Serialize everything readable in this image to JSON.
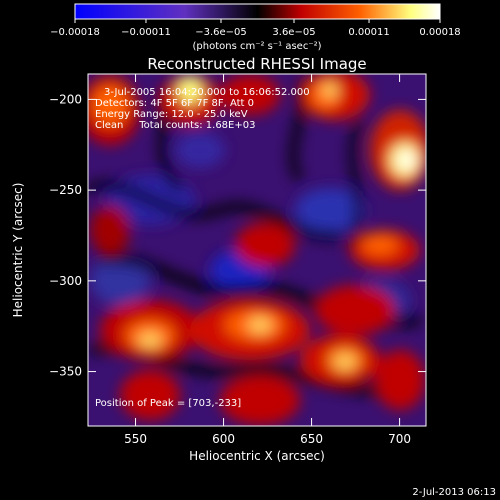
{
  "chart_data": {
    "type": "heatmap",
    "title": "Reconstructed RHESSI Image",
    "xlabel": "Heliocentric X (arcsec)",
    "ylabel": "Heliocentric Y (arcsec)",
    "xlim": [
      523,
      715
    ],
    "ylim": [
      -380,
      -186
    ],
    "xticks": [
      550,
      600,
      650,
      700
    ],
    "yticks": [
      -200,
      -250,
      -300,
      -350
    ],
    "xtick_labels": [
      "550",
      "600",
      "650",
      "700"
    ],
    "ytick_labels": [
      "−200",
      "−250",
      "−300",
      "−350"
    ],
    "colorbar": {
      "range": [
        -0.00018,
        0.00018
      ],
      "ticks": [
        -0.00018,
        -0.00011,
        -3.6e-05,
        3.6e-05,
        0.00011,
        0.00018
      ],
      "tick_labels": [
        "−0.00018",
        "−0.00011",
        "−3.6e−05",
        "3.6e−05",
        "0.00011",
        "0.00018"
      ],
      "unit_label": "(photons cm⁻² s⁻¹ asec⁻²)",
      "colors": [
        "#0000ff",
        "#6030c0",
        "#000000",
        "#c00000",
        "#ff6000",
        "#ffff80",
        "#ffffff"
      ]
    },
    "annotations": [
      "3-Jul-2005 16:04:20.000 to 16:06:52.000",
      "Detectors: 4F 5F 6F 7F 8F, Att 0",
      "Energy Range: 12.0 - 25.0 keV",
      "Clean     Total counts: 1.68E+03",
      "Position of Peak = [703,-233]"
    ],
    "peak": {
      "x": 703,
      "y": -233
    },
    "footer": "2-Jul-2013 06:13"
  }
}
